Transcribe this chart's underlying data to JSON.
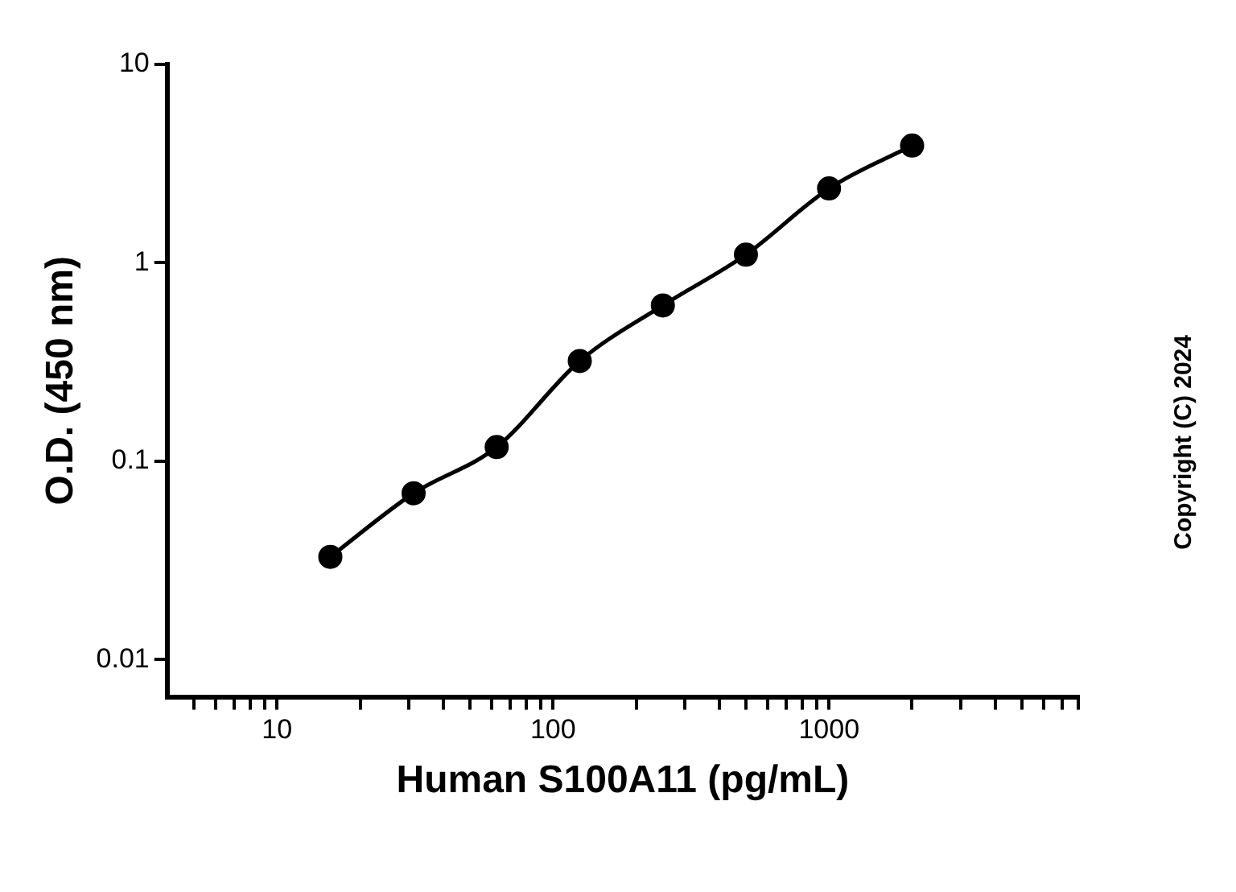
{
  "chart_data": {
    "type": "scatter",
    "xlabel": "Human S100A11 (pg/mL)",
    "ylabel": "O.D. (450 nm)",
    "log": "xy",
    "grid": false,
    "legend": false,
    "marker": "circle",
    "xlim": [
      4,
      8000
    ],
    "ylim": [
      0.0065,
      10
    ],
    "xticks": [
      {
        "value": 5,
        "label": null
      },
      {
        "value": 6,
        "label": null
      },
      {
        "value": 7,
        "label": null
      },
      {
        "value": 8,
        "label": null
      },
      {
        "value": 9,
        "label": null
      },
      10,
      {
        "value": 20,
        "label": null
      },
      {
        "value": 30,
        "label": null
      },
      {
        "value": 40,
        "label": null
      },
      {
        "value": 50,
        "label": null
      },
      {
        "value": 60,
        "label": null
      },
      {
        "value": 70,
        "label": null
      },
      {
        "value": 80,
        "label": null
      },
      {
        "value": 90,
        "label": null
      },
      100,
      {
        "value": 200,
        "label": null
      },
      {
        "value": 300,
        "label": null
      },
      {
        "value": 400,
        "label": null
      },
      {
        "value": 500,
        "label": null
      },
      {
        "value": 600,
        "label": null
      },
      {
        "value": 700,
        "label": null
      },
      {
        "value": 800,
        "label": null
      },
      {
        "value": 900,
        "label": null
      },
      1000,
      {
        "value": 2000,
        "label": null
      },
      {
        "value": 3000,
        "label": null
      },
      {
        "value": 4000,
        "label": null
      },
      {
        "value": 5000,
        "label": null
      },
      {
        "value": 6000,
        "label": null
      },
      {
        "value": 7000,
        "label": null
      },
      {
        "value": 8000,
        "label": null
      }
    ],
    "yticks": [
      0.01,
      0.1,
      1,
      10
    ],
    "series": [
      {
        "type": "line",
        "marker": "none",
        "color": "#000000",
        "x": [
          15.6,
          31.25,
          62.5,
          125,
          250,
          500,
          1000,
          2000
        ],
        "values": [
          0.033,
          0.069,
          0.118,
          0.32,
          0.61,
          1.1,
          2.37,
          3.9
        ]
      },
      {
        "type": "scatter",
        "color": "#000000",
        "x": [
          15.6,
          31.25,
          62.5,
          125,
          250,
          500,
          1000,
          2000
        ],
        "values": [
          0.033,
          0.069,
          0.118,
          0.32,
          0.61,
          1.1,
          2.37,
          3.9
        ]
      }
    ],
    "annotations": [
      "Copyright (C) 2024"
    ]
  }
}
